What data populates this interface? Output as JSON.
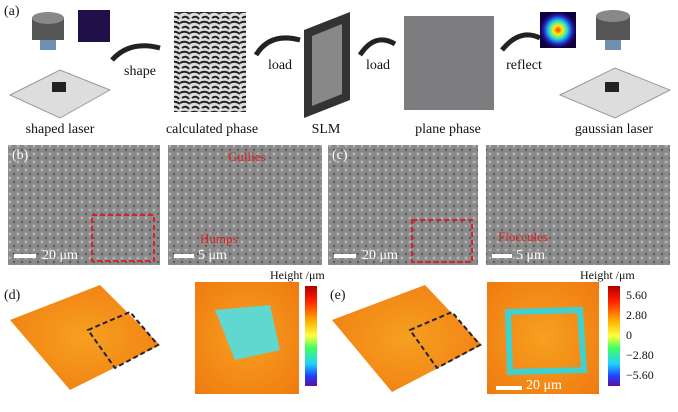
{
  "panel_a": {
    "label": "(a)",
    "arrows": [
      "shape",
      "load",
      "load",
      "reflect"
    ],
    "captions": [
      "shaped laser",
      "calculated phase",
      "SLM",
      "plane phase",
      "gaussian laser"
    ]
  },
  "panel_b": {
    "label": "(b)",
    "annotations": [
      "Gullies",
      "Humps"
    ],
    "scale_bars": [
      "20 μm",
      "5 μm"
    ]
  },
  "panel_c": {
    "label": "(c)",
    "annotations": [
      "Floccules"
    ],
    "scale_bars": [
      "20 μm",
      "5 μm"
    ]
  },
  "panel_d": {
    "label": "(d)",
    "colorbar_title": "Height /μm"
  },
  "panel_e": {
    "label": "(e)",
    "colorbar_title": "Height /μm",
    "colorbar_ticks": [
      "5.60",
      "2.80",
      "0",
      "−2.80",
      "−5.60"
    ],
    "scale_bar": "20 μm"
  }
}
